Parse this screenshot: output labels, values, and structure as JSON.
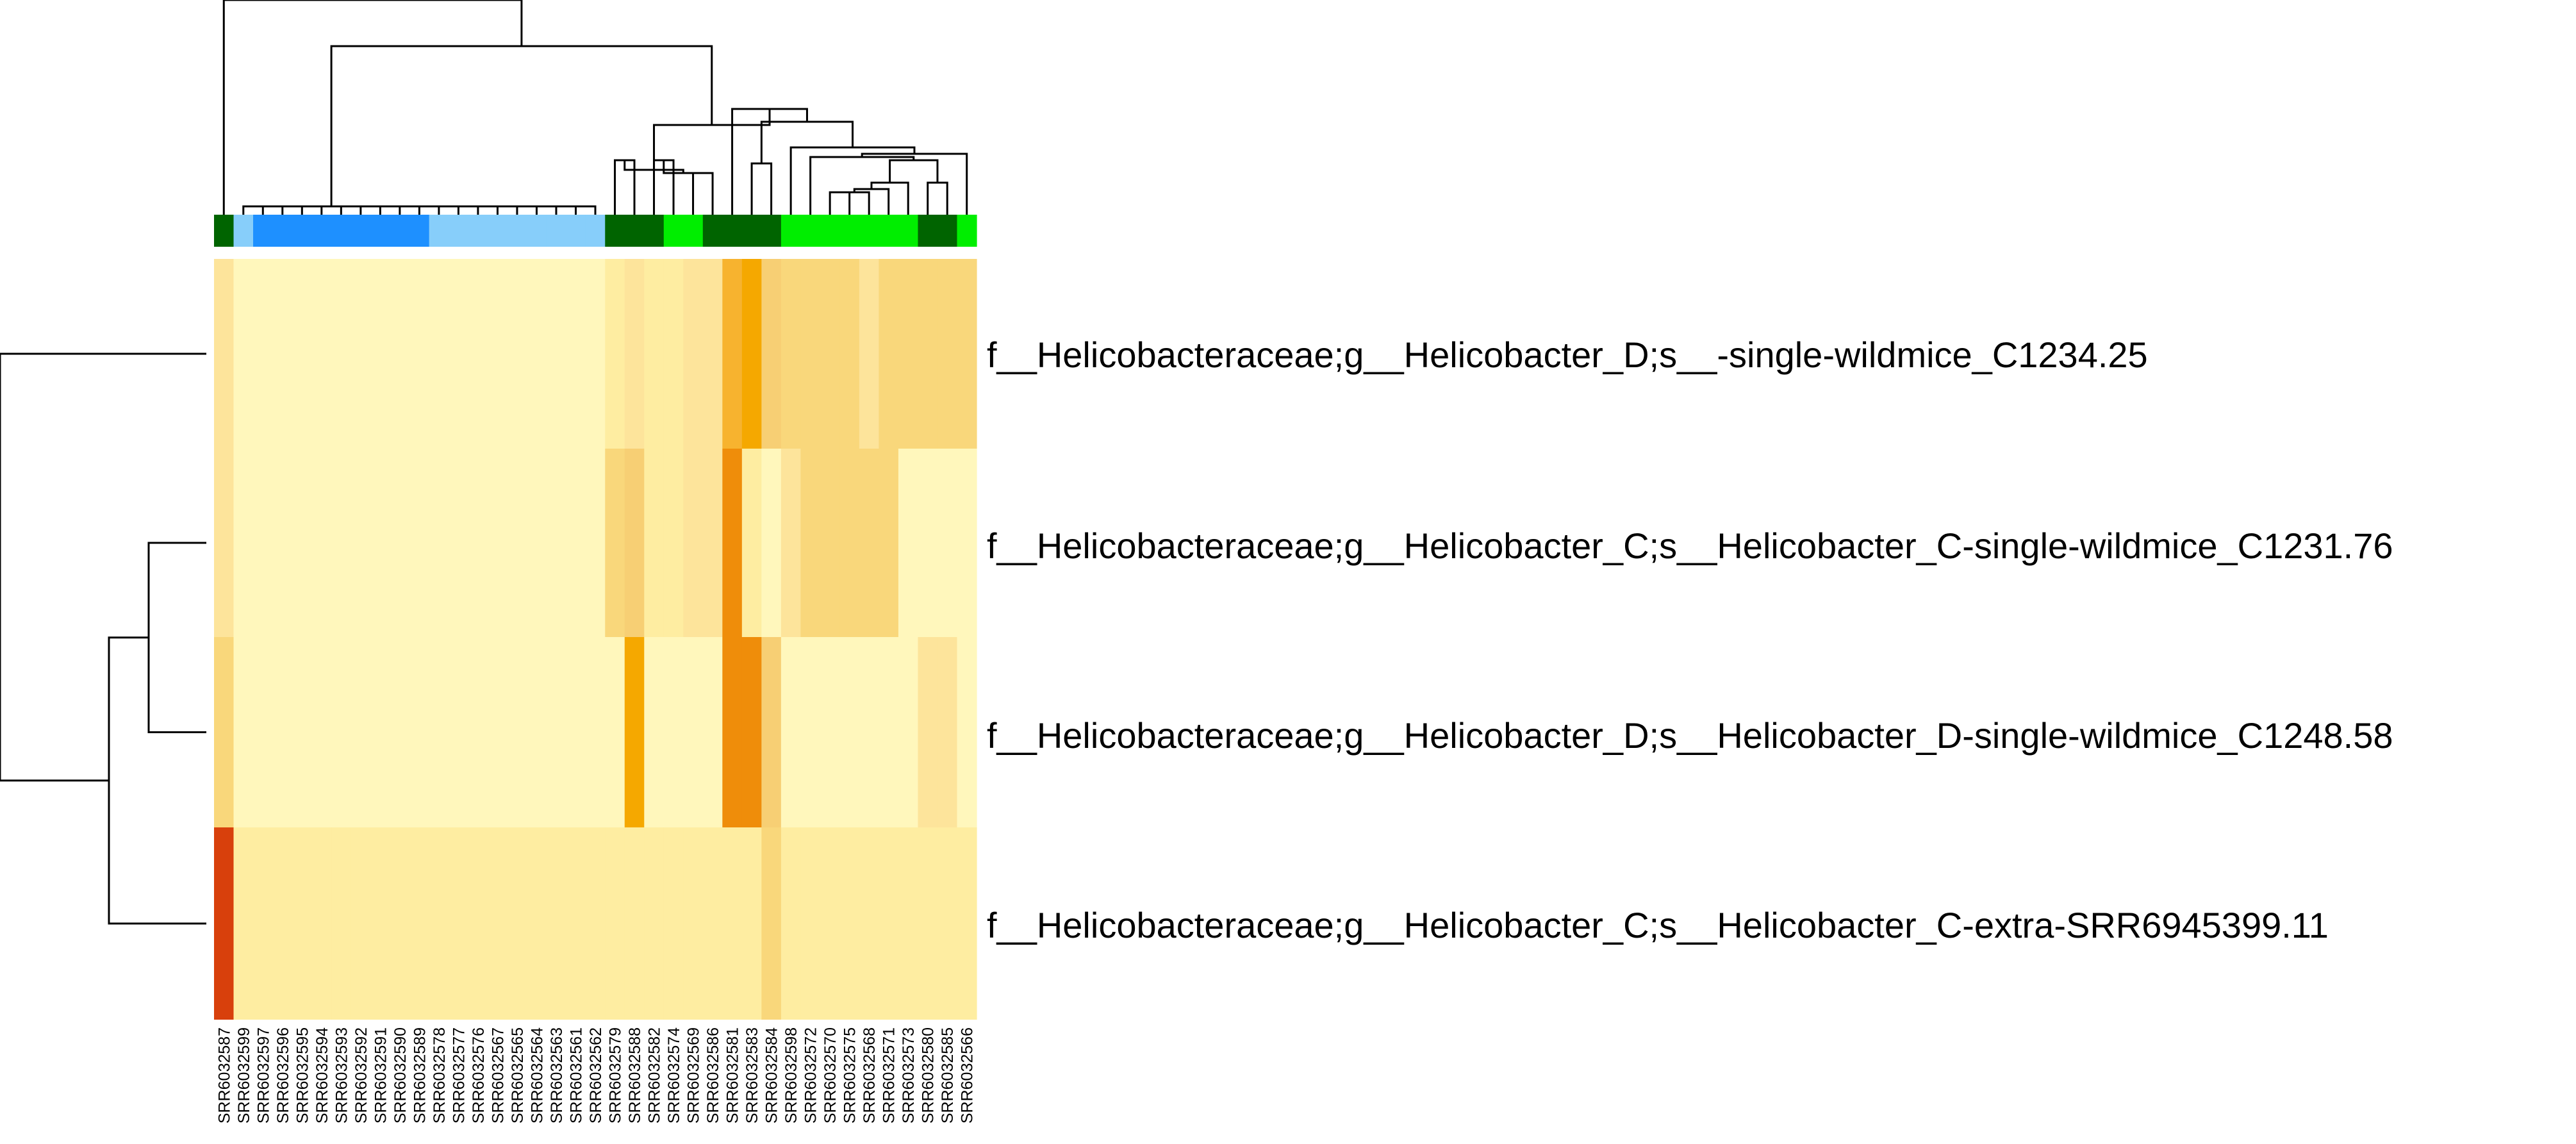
{
  "chart_data": {
    "type": "heatmap",
    "title": "",
    "xlabel": "",
    "ylabel": "",
    "grid": false,
    "legend": "none",
    "row_labels": [
      "f__Helicobacteraceae;g__Helicobacter_D;s__-single-wildmice_C1234.25",
      "f__Helicobacteraceae;g__Helicobacter_C;s__Helicobacter_C-single-wildmice_C1231.76",
      "f__Helicobacteraceae;g__Helicobacter_D;s__Helicobacter_D-single-wildmice_C1248.58",
      "f__Helicobacteraceae;g__Helicobacter_C;s__Helicobacter_C-extra-SRR6945399.11"
    ],
    "column_labels": [
      "SRR6032587",
      "SRR6032599",
      "SRR6032597",
      "SRR6032596",
      "SRR6032595",
      "SRR6032594",
      "SRR6032593",
      "SRR6032592",
      "SRR6032591",
      "SRR6032590",
      "SRR6032589",
      "SRR6032578",
      "SRR6032577",
      "SRR6032576",
      "SRR6032567",
      "SRR6032565",
      "SRR6032564",
      "SRR6032563",
      "SRR6032561",
      "SRR6032562",
      "SRR6032579",
      "SRR6032588",
      "SRR6032582",
      "SRR6032574",
      "SRR6032569",
      "SRR6032586",
      "SRR6032581",
      "SRR6032583",
      "SRR6032584",
      "SRR6032598",
      "SRR6032572",
      "SRR6032570",
      "SRR6032575",
      "SRR6032568",
      "SRR6032571",
      "SRR6032573",
      "SRR6032580",
      "SRR6032585",
      "SRR6032566"
    ],
    "column_groups": [
      "dg",
      "lb",
      "b",
      "b",
      "b",
      "b",
      "b",
      "b",
      "b",
      "b",
      "b",
      "lb",
      "lb",
      "lb",
      "lb",
      "lb",
      "lb",
      "lb",
      "lb",
      "lb",
      "dg",
      "dg",
      "dg",
      "g",
      "g",
      "dg",
      "dg",
      "dg",
      "dg",
      "g",
      "g",
      "g",
      "g",
      "g",
      "g",
      "g",
      "dg",
      "dg",
      "g"
    ],
    "group_colors": {
      "dg": "#006400",
      "g": "#00ee00",
      "b": "#1e90ff",
      "lb": "#87cefa"
    },
    "values": [
      [
        3,
        1,
        1,
        1,
        1,
        1,
        1,
        1,
        1,
        1,
        1,
        1,
        1,
        1,
        1,
        1,
        1,
        1,
        1,
        1,
        2,
        3,
        2,
        2,
        3,
        3,
        6,
        7,
        5,
        4,
        4,
        4,
        4,
        3,
        4,
        4,
        4,
        4,
        4
      ],
      [
        3,
        1,
        1,
        1,
        1,
        1,
        1,
        1,
        1,
        1,
        1,
        1,
        1,
        1,
        1,
        1,
        1,
        1,
        1,
        1,
        4,
        5,
        2,
        2,
        3,
        3,
        8,
        2,
        1,
        3,
        4,
        4,
        4,
        4,
        4,
        1,
        1,
        1,
        1
      ],
      [
        4,
        1,
        1,
        1,
        1,
        1,
        1,
        1,
        1,
        1,
        1,
        1,
        1,
        1,
        1,
        1,
        1,
        1,
        1,
        1,
        1,
        7,
        1,
        1,
        1,
        1,
        8,
        8,
        5,
        1,
        1,
        1,
        1,
        1,
        1,
        1,
        3,
        3,
        1
      ],
      [
        10,
        2,
        2,
        2,
        2,
        2,
        2,
        2,
        2,
        2,
        2,
        2,
        2,
        2,
        2,
        2,
        2,
        2,
        2,
        2,
        2,
        2,
        2,
        2,
        2,
        2,
        2,
        2,
        4,
        2,
        2,
        2,
        2,
        2,
        2,
        2,
        2,
        2,
        2
      ]
    ],
    "color_scale": [
      "#ffffcc",
      "#fff7bc",
      "#feeda1",
      "#fde49b",
      "#f9d77b",
      "#f7cf74",
      "#f7b32f",
      "#f5a800",
      "#ef8d0a",
      "#e96509",
      "#d8400c",
      "#7f0026"
    ]
  }
}
